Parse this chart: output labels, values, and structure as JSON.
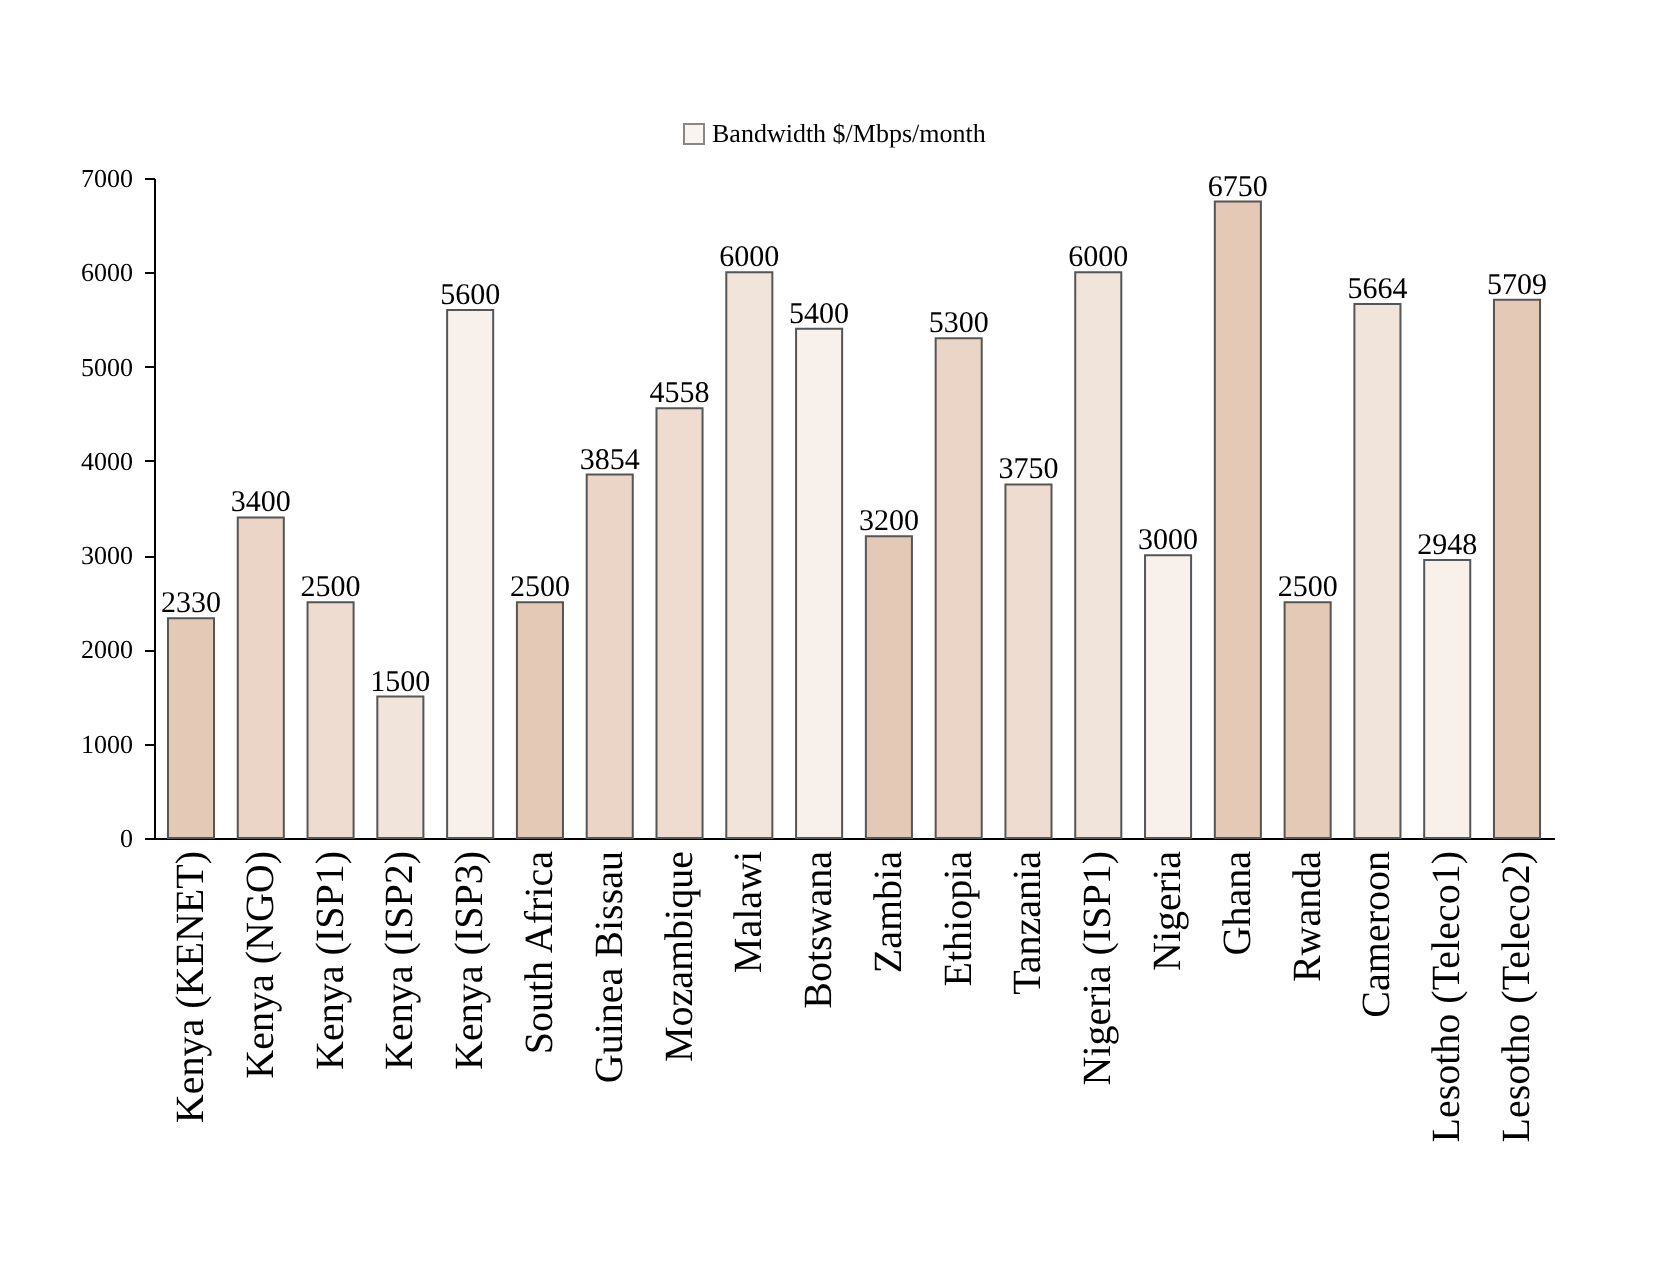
{
  "chart_data": {
    "type": "bar",
    "categories": [
      "Kenya (KENET)",
      "Kenya (NGO)",
      "Kenya (ISP1)",
      "Kenya (ISP2)",
      "Kenya (ISP3)",
      "South Africa",
      "Guinea Bissau",
      "Mozambique",
      "Malawi",
      "Botswana",
      "Zambia",
      "Ethiopia",
      "Tanzania",
      "Nigeria (ISP1)",
      "Nigeria",
      "Ghana",
      "Rwanda",
      "Cameroon",
      "Lesotho (Teleco1)",
      "Lesotho (Teleco2)"
    ],
    "series": [
      {
        "name": "Bandwidth $/Mbps/month",
        "values": [
          2330,
          3400,
          2500,
          1500,
          5600,
          2500,
          3854,
          4558,
          6000,
          5400,
          3200,
          5300,
          3750,
          6000,
          3000,
          6750,
          2500,
          5664,
          2948,
          5709
        ]
      }
    ],
    "colors": [
      "#e4c9b6",
      "#ead5c6",
      "#eddccf",
      "#f1e4da",
      "#f7f0eb",
      "#e4c9b6",
      "#ead5c6",
      "#eddccf",
      "#f1e4da",
      "#f7f0eb",
      "#e4c9b6",
      "#ead5c6",
      "#eddccf",
      "#f1e4da",
      "#f7f0eb",
      "#e4c9b6",
      "#e4c9b6",
      "#f1e4da",
      "#f7f0eb",
      "#e4c9b6"
    ],
    "ylim": [
      0,
      7000
    ],
    "yticks": [
      0,
      1000,
      2000,
      3000,
      4000,
      5000,
      6000,
      7000
    ],
    "grid": false,
    "legend": "top",
    "data_labels": true
  }
}
